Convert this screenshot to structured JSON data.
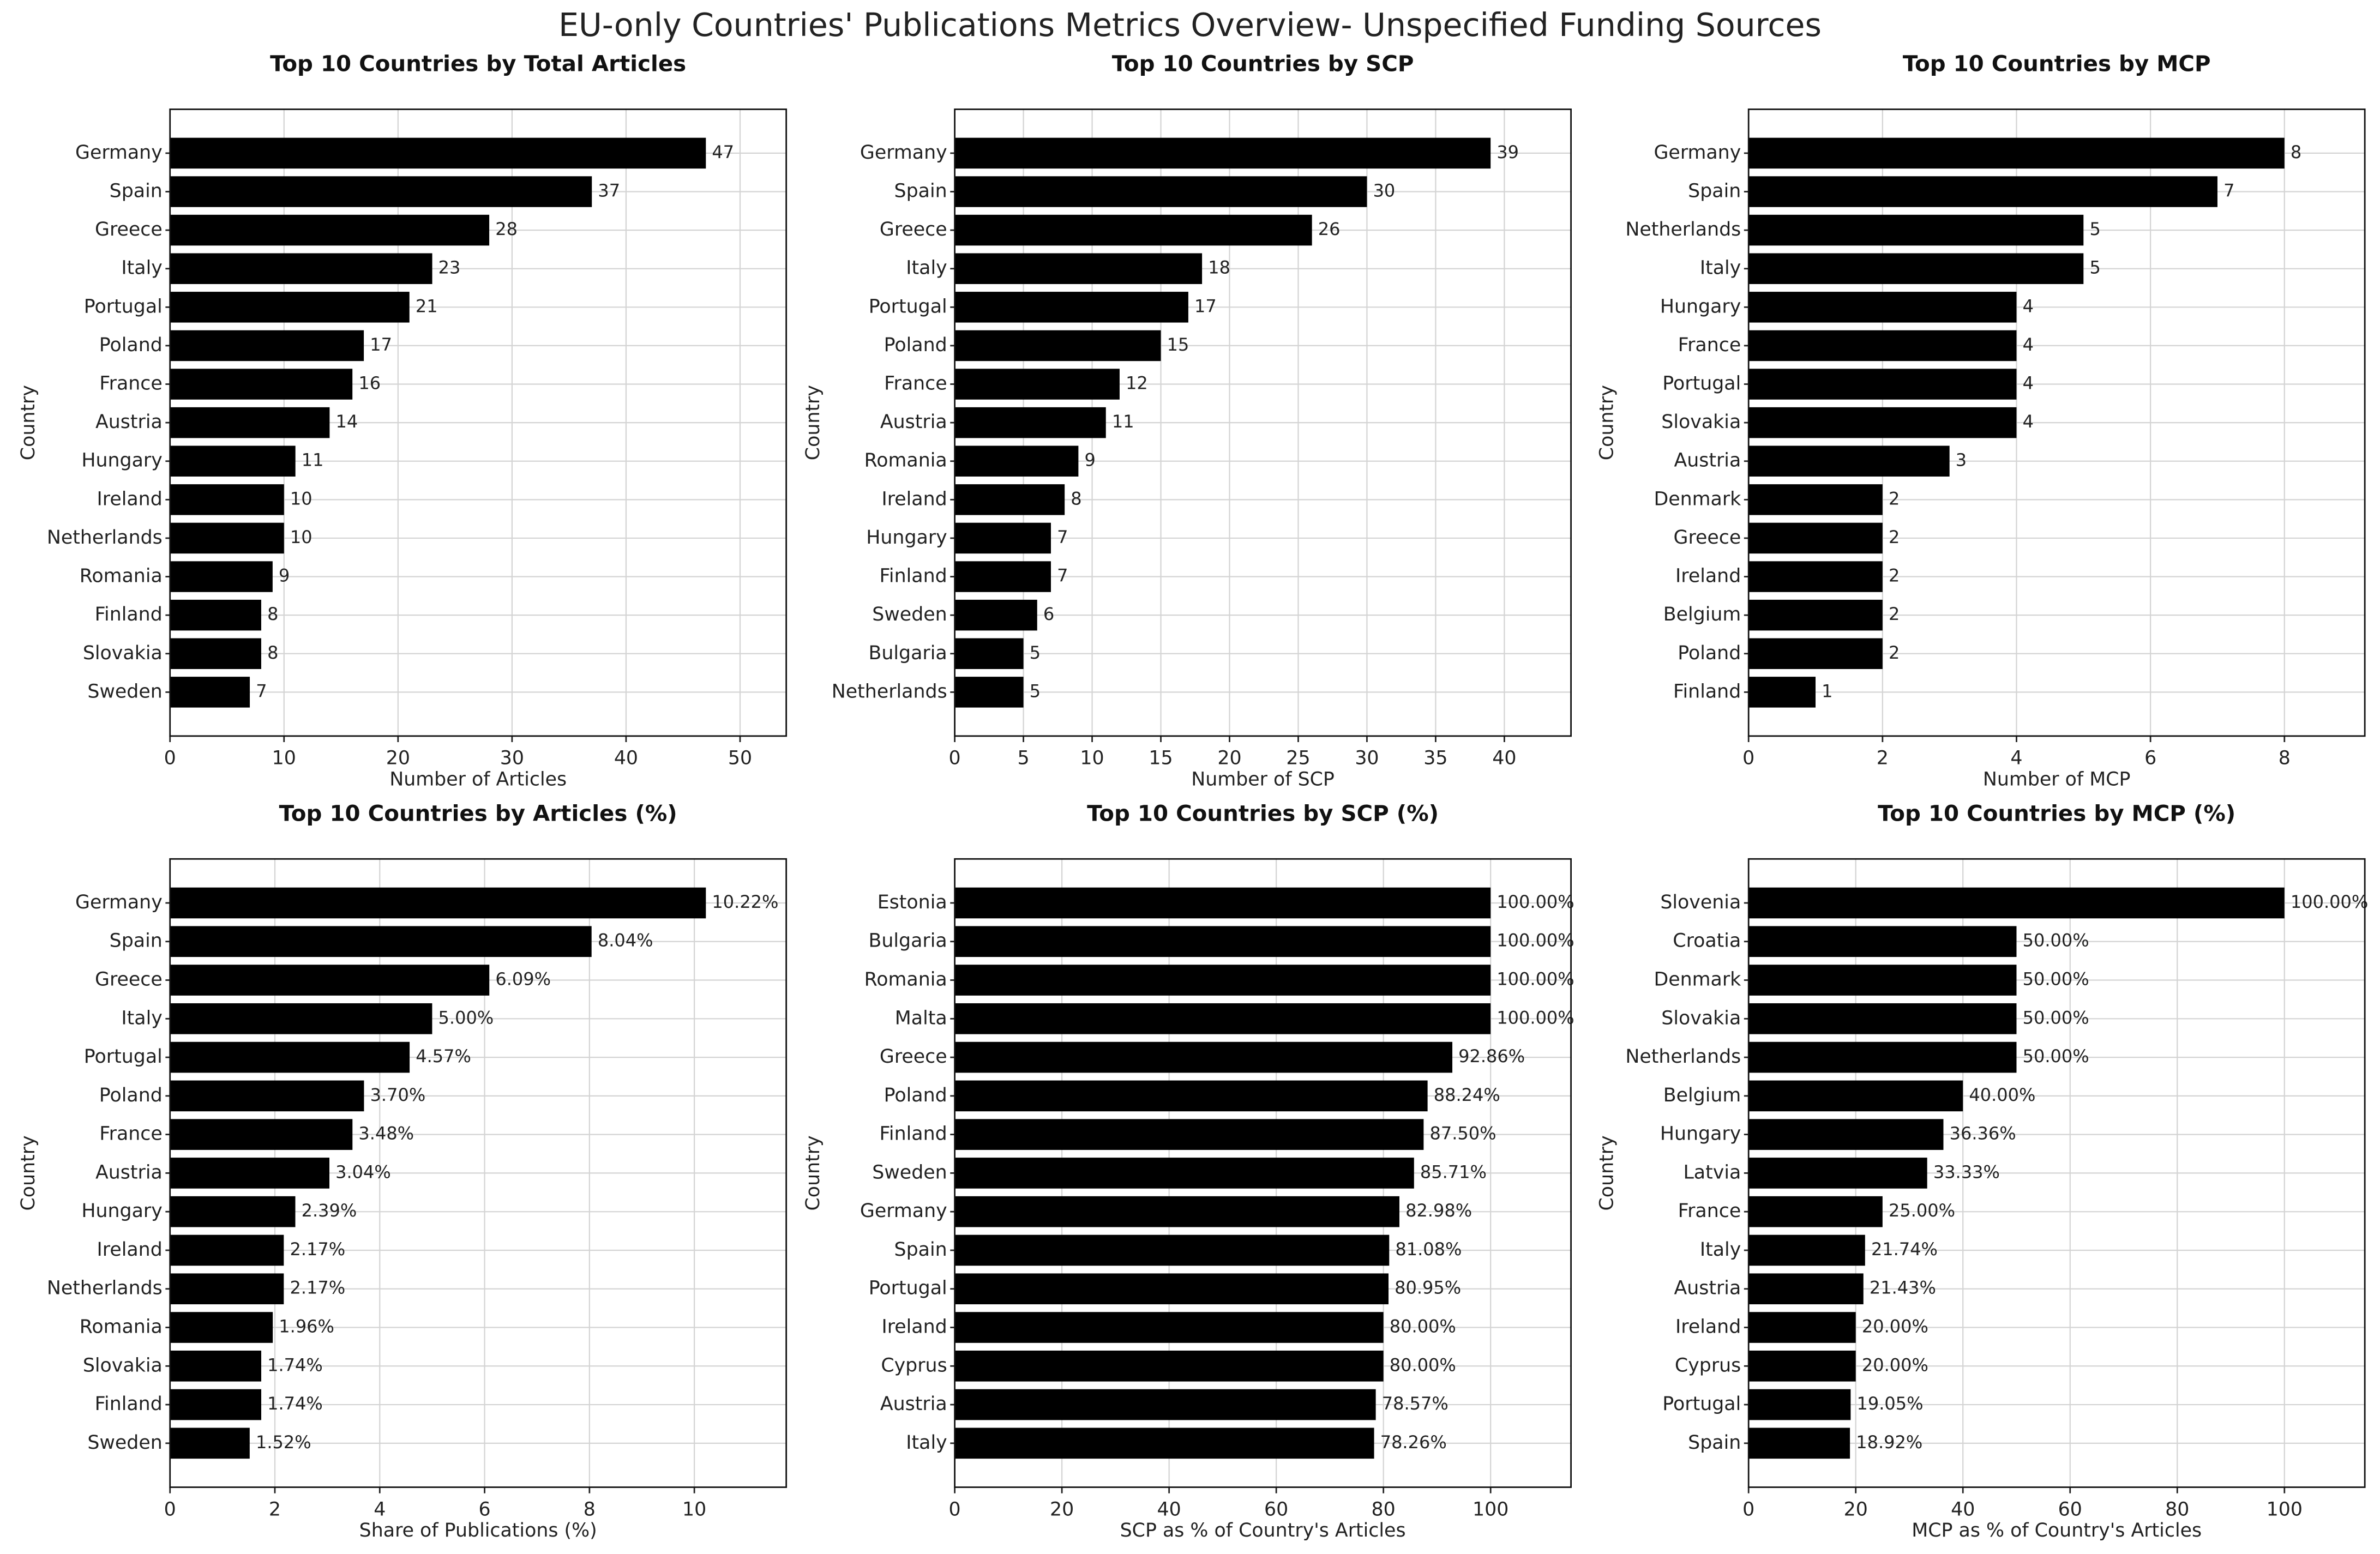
{
  "title": "EU-only Countries' Publications Metrics Overview- Unspecified Funding Sources",
  "chart_data": [
    {
      "type": "bar",
      "orientation": "horizontal",
      "title": "Top 10 Countries by Total Articles",
      "x_label": "Number of Articles",
      "y_label": "Country",
      "color": "#000000",
      "grid": true,
      "categories": [
        "Germany",
        "Spain",
        "Greece",
        "Italy",
        "Portugal",
        "Poland",
        "France",
        "Austria",
        "Hungary",
        "Ireland",
        "Netherlands",
        "Romania",
        "Finland",
        "Slovakia",
        "Sweden"
      ],
      "values": [
        47,
        37,
        28,
        23,
        21,
        17,
        16,
        14,
        11,
        10,
        10,
        9,
        8,
        8,
        7
      ],
      "xlim": [
        0,
        54.05
      ],
      "xticks": [
        0,
        10,
        20,
        30,
        40,
        50
      ]
    },
    {
      "type": "bar",
      "orientation": "horizontal",
      "title": "Top 10 Countries by SCP",
      "x_label": "Number of SCP",
      "y_label": "Country",
      "color": "#000000",
      "grid": true,
      "categories": [
        "Germany",
        "Spain",
        "Greece",
        "Italy",
        "Portugal",
        "Poland",
        "France",
        "Austria",
        "Romania",
        "Ireland",
        "Hungary",
        "Finland",
        "Sweden",
        "Bulgaria",
        "Netherlands"
      ],
      "values": [
        39,
        30,
        26,
        18,
        17,
        15,
        12,
        11,
        9,
        8,
        7,
        7,
        6,
        5,
        5
      ],
      "xlim": [
        0,
        44.85
      ],
      "xticks": [
        0,
        5,
        10,
        15,
        20,
        25,
        30,
        35,
        40
      ]
    },
    {
      "type": "bar",
      "orientation": "horizontal",
      "title": "Top 10 Countries by MCP",
      "x_label": "Number of MCP",
      "y_label": "Country",
      "color": "#000000",
      "grid": true,
      "categories": [
        "Germany",
        "Spain",
        "Netherlands",
        "Italy",
        "Hungary",
        "France",
        "Portugal",
        "Slovakia",
        "Austria",
        "Denmark",
        "Greece",
        "Ireland",
        "Belgium",
        "Poland",
        "Finland"
      ],
      "values": [
        8,
        7,
        5,
        5,
        4,
        4,
        4,
        4,
        3,
        2,
        2,
        2,
        2,
        2,
        1
      ],
      "xlim": [
        0,
        9.2
      ],
      "xticks": [
        0,
        2,
        4,
        6,
        8
      ]
    },
    {
      "type": "bar",
      "orientation": "horizontal",
      "title": "Top 10 Countries by Articles (%)",
      "x_label": "Share of Publications (%)",
      "y_label": "Country",
      "color": "#000000",
      "grid": true,
      "categories": [
        "Germany",
        "Spain",
        "Greece",
        "Italy",
        "Portugal",
        "Poland",
        "France",
        "Austria",
        "Hungary",
        "Ireland",
        "Netherlands",
        "Romania",
        "Slovakia",
        "Finland",
        "Sweden"
      ],
      "values": [
        10.22,
        8.04,
        6.09,
        5.0,
        4.57,
        3.7,
        3.48,
        3.04,
        2.39,
        2.17,
        2.17,
        1.96,
        1.74,
        1.74,
        1.52
      ],
      "value_labels": [
        "10.22%",
        "8.04%",
        "6.09%",
        "5.00%",
        "4.57%",
        "3.70%",
        "3.48%",
        "3.04%",
        "2.39%",
        "2.17%",
        "2.17%",
        "1.96%",
        "1.74%",
        "1.74%",
        "1.52%"
      ],
      "xlim": [
        0,
        11.753
      ],
      "xticks": [
        0,
        2,
        4,
        6,
        8,
        10
      ]
    },
    {
      "type": "bar",
      "orientation": "horizontal",
      "title": "Top 10 Countries by SCP (%)",
      "x_label": "SCP as % of Country's Articles",
      "y_label": "Country",
      "color": "#000000",
      "grid": true,
      "categories": [
        "Estonia",
        "Bulgaria",
        "Romania",
        "Malta",
        "Greece",
        "Poland",
        "Finland",
        "Sweden",
        "Germany",
        "Spain",
        "Portugal",
        "Ireland",
        "Cyprus",
        "Austria",
        "Italy"
      ],
      "values": [
        100,
        100,
        100,
        100,
        92.86,
        88.24,
        87.5,
        85.71,
        82.98,
        81.08,
        80.95,
        80.0,
        80.0,
        78.57,
        78.26
      ],
      "value_labels": [
        "100.00%",
        "100.00%",
        "100.00%",
        "100.00%",
        "92.86%",
        "88.24%",
        "87.50%",
        "85.71%",
        "82.98%",
        "81.08%",
        "80.95%",
        "80.00%",
        "80.00%",
        "78.57%",
        "78.26%"
      ],
      "xlim": [
        0,
        115
      ],
      "xticks": [
        0,
        20,
        40,
        60,
        80,
        100
      ]
    },
    {
      "type": "bar",
      "orientation": "horizontal",
      "title": "Top 10 Countries by MCP (%)",
      "x_label": "MCP as % of Country's Articles",
      "y_label": "Country",
      "color": "#000000",
      "grid": true,
      "categories": [
        "Slovenia",
        "Croatia",
        "Denmark",
        "Slovakia",
        "Netherlands",
        "Belgium",
        "Hungary",
        "Latvia",
        "France",
        "Italy",
        "Austria",
        "Ireland",
        "Cyprus",
        "Portugal",
        "Spain"
      ],
      "values": [
        100,
        50,
        50,
        50,
        50,
        40,
        36.36,
        33.33,
        25,
        21.74,
        21.43,
        20,
        20,
        19.05,
        18.92
      ],
      "value_labels": [
        "100.00%",
        "50.00%",
        "50.00%",
        "50.00%",
        "50.00%",
        "40.00%",
        "36.36%",
        "33.33%",
        "25.00%",
        "21.74%",
        "21.43%",
        "20.00%",
        "20.00%",
        "19.05%",
        "18.92%"
      ],
      "xlim": [
        0,
        115
      ],
      "xticks": [
        0,
        20,
        40,
        60,
        80,
        100
      ]
    }
  ]
}
